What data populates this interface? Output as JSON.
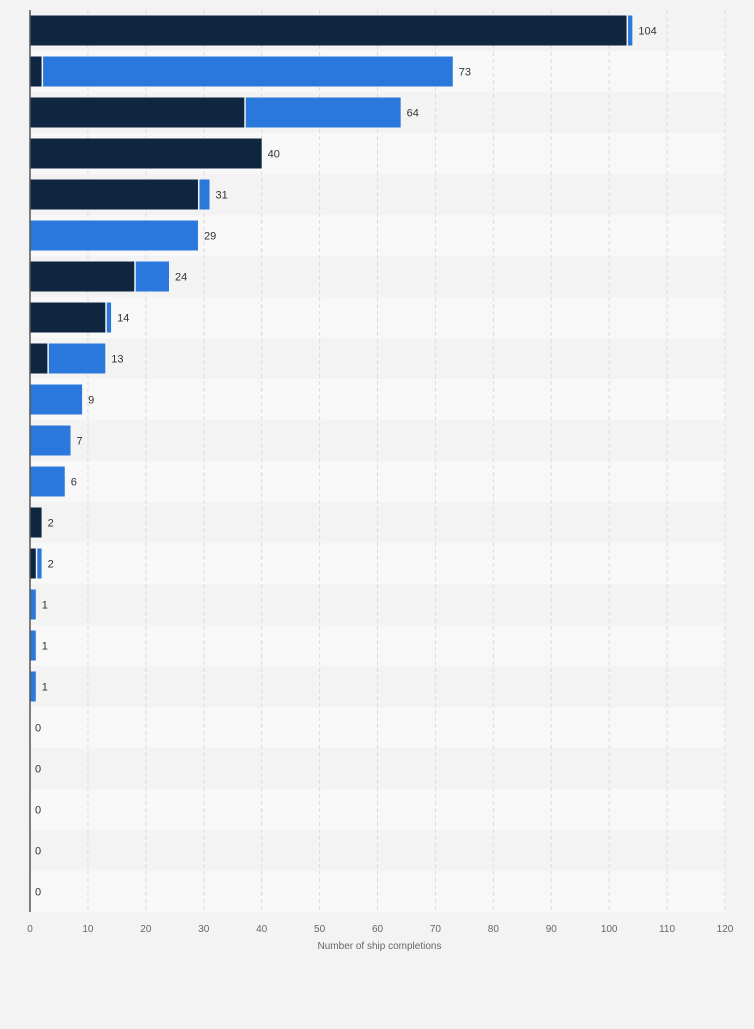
{
  "chart_data": {
    "type": "bar",
    "orientation": "horizontal",
    "stacked": true,
    "title": "",
    "xlabel": "Number of ship completions",
    "ylabel": "",
    "xlim": [
      0,
      120
    ],
    "x_ticks": [
      0,
      10,
      20,
      30,
      40,
      50,
      60,
      70,
      80,
      90,
      100,
      110,
      120
    ],
    "grid": true,
    "legend": "none",
    "colors": {
      "series_a": "#0e2640",
      "series_b": "#2a78dc"
    },
    "series": [
      {
        "values": [
          103,
          2,
          37,
          40,
          29,
          0,
          18,
          13,
          3,
          0,
          0,
          0,
          2,
          1,
          0,
          0,
          0,
          0,
          0,
          0,
          0,
          0
        ]
      },
      {
        "values": [
          1,
          71,
          27,
          0,
          2,
          29,
          6,
          1,
          10,
          9,
          7,
          6,
          0,
          1,
          1,
          1,
          1,
          0,
          0,
          0,
          0,
          0
        ]
      }
    ],
    "totals": [
      104,
      73,
      64,
      40,
      31,
      29,
      24,
      14,
      13,
      9,
      7,
      6,
      2,
      2,
      1,
      1,
      1,
      0,
      0,
      0,
      0,
      0
    ]
  }
}
